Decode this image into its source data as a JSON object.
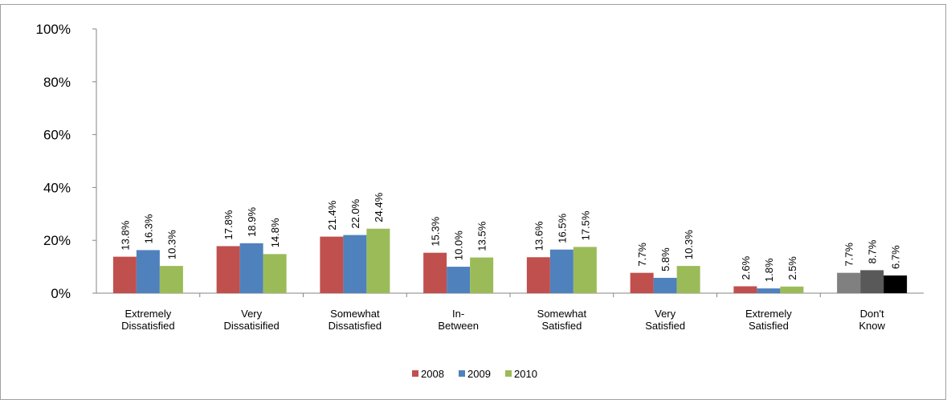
{
  "chart_data": {
    "type": "bar",
    "categories": [
      "Extremely\nDissatisfied",
      "Very\nDissatisified",
      "Somewhat\nDissatisfied",
      "In-\nBetween",
      "Somewhat\nSatisfied",
      "Very\nSatisfied",
      "Extremely\nSatisfied",
      "Don't\nKnow"
    ],
    "series": [
      {
        "name": "2008",
        "color": "#c0504d",
        "colors": [
          "#c0504d",
          "#c0504d",
          "#c0504d",
          "#c0504d",
          "#c0504d",
          "#c0504d",
          "#c0504d",
          "#808080"
        ],
        "values": [
          13.8,
          17.8,
          21.4,
          15.3,
          13.6,
          7.7,
          2.6,
          7.7
        ],
        "value_labels": [
          "13.8%",
          "17.8%",
          "21.4%",
          "15.3%",
          "13.6%",
          "7.7%",
          "2.6%",
          "7.7%"
        ]
      },
      {
        "name": "2009",
        "color": "#4f81bd",
        "colors": [
          "#4f81bd",
          "#4f81bd",
          "#4f81bd",
          "#4f81bd",
          "#4f81bd",
          "#4f81bd",
          "#4f81bd",
          "#595959"
        ],
        "values": [
          16.3,
          18.9,
          22.0,
          10.0,
          16.5,
          5.8,
          1.8,
          8.7
        ],
        "value_labels": [
          "16.3%",
          "18.9%",
          "22.0%",
          "10.0%",
          "16.5%",
          "5.8%",
          "1.8%",
          "8.7%"
        ]
      },
      {
        "name": "2010",
        "color": "#9bbb59",
        "colors": [
          "#9bbb59",
          "#9bbb59",
          "#9bbb59",
          "#9bbb59",
          "#9bbb59",
          "#9bbb59",
          "#9bbb59",
          "#000000"
        ],
        "values": [
          10.3,
          14.8,
          24.4,
          13.5,
          17.5,
          10.3,
          2.5,
          6.7
        ],
        "value_labels": [
          "10.3%",
          "14.8%",
          "24.4%",
          "13.5%",
          "17.5%",
          "10.3%",
          "2.5%",
          "6.7%"
        ]
      }
    ],
    "ylim": [
      0,
      100
    ],
    "yticks": [
      {
        "value": 0,
        "label": "0%"
      },
      {
        "value": 20,
        "label": "20%"
      },
      {
        "value": 40,
        "label": "40%"
      },
      {
        "value": 60,
        "label": "60%"
      },
      {
        "value": 80,
        "label": "80%"
      },
      {
        "value": 100,
        "label": "100%"
      }
    ],
    "grid": false,
    "legend": "bottom"
  }
}
